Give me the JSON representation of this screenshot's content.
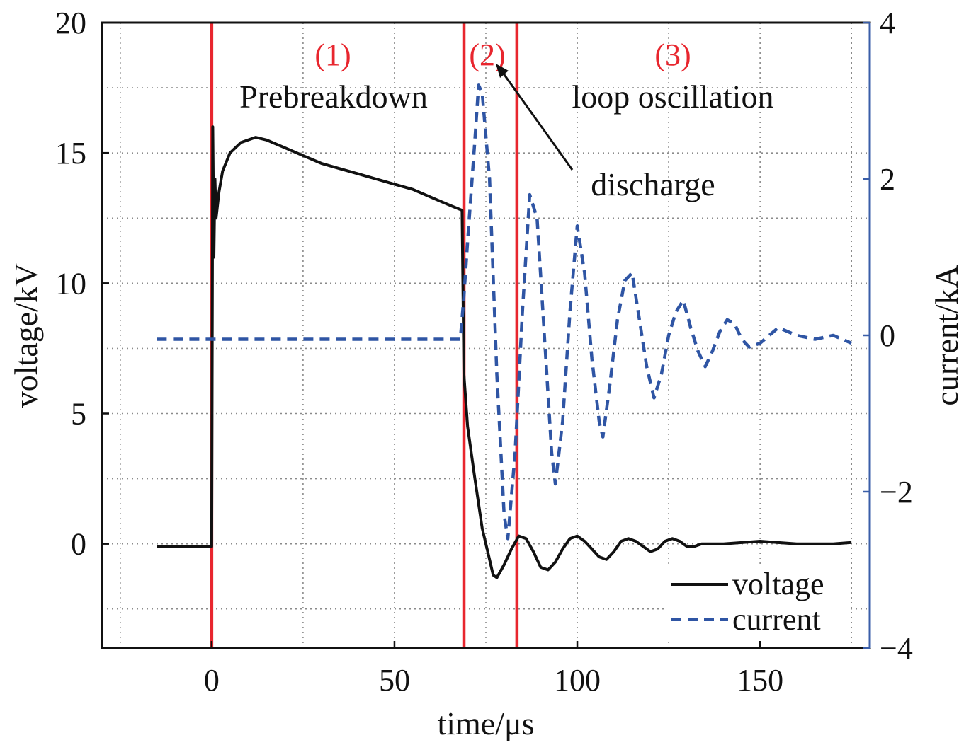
{
  "chart_data": {
    "type": "line",
    "x_label": "time/μs",
    "y_label_left": "voltage/kV",
    "y_label_right": "current/kA",
    "x_range": [
      -30,
      180
    ],
    "y_range_left": [
      -4,
      20
    ],
    "y_range_right": [
      -4,
      4
    ],
    "x_ticks": [
      0,
      50,
      100,
      150
    ],
    "x_tick_labels": [
      "0",
      "50",
      "100",
      "150"
    ],
    "y_ticks_left": [
      0,
      5,
      10,
      15,
      20
    ],
    "y_tick_labels_left": [
      "0",
      "5",
      "10",
      "15",
      "20"
    ],
    "y_ticks_right": [
      -4,
      -2,
      0,
      2,
      4
    ],
    "y_tick_labels_right": [
      "−4",
      "−2",
      "0",
      "2",
      "4"
    ],
    "grid": "dotted",
    "legend_position": "bottom-right",
    "colors": {
      "voltage": "#111111",
      "current": "#2f55a4",
      "region_lines": "#e8262e",
      "right_axis": "#3a5ea8"
    },
    "series": [
      {
        "name": "voltage",
        "axis": "left",
        "style": "solid",
        "x": [
          -15,
          0,
          0.3,
          0.6,
          0.9,
          1.2,
          2,
          3,
          5,
          8,
          12,
          15,
          20,
          25,
          30,
          35,
          40,
          45,
          50,
          55,
          60,
          65,
          68.5,
          69,
          70,
          72,
          74,
          76,
          77,
          78,
          80,
          82,
          84,
          86,
          88,
          90,
          92,
          94,
          96,
          98,
          100,
          102,
          104,
          106,
          108,
          110,
          112,
          114,
          116,
          118,
          120,
          122,
          124,
          126,
          128,
          130,
          132,
          134,
          140,
          150,
          160,
          170,
          175
        ],
        "y": [
          -0.1,
          -0.1,
          16,
          11,
          14,
          12.5,
          13.5,
          14.3,
          15,
          15.4,
          15.6,
          15.5,
          15.2,
          14.9,
          14.6,
          14.4,
          14.2,
          14,
          13.8,
          13.6,
          13.3,
          13,
          12.8,
          6.5,
          4.5,
          2.5,
          0.6,
          -0.6,
          -1.2,
          -1.3,
          -0.8,
          -0.2,
          0.3,
          0.2,
          -0.3,
          -0.9,
          -1,
          -0.7,
          -0.2,
          0.2,
          0.3,
          0.1,
          -0.2,
          -0.5,
          -0.6,
          -0.3,
          0.1,
          0.2,
          0.1,
          -0.1,
          -0.3,
          -0.2,
          0.1,
          0.2,
          0.1,
          -0.1,
          -0.1,
          0,
          0,
          0.1,
          0,
          0,
          0.05
        ]
      },
      {
        "name": "current",
        "axis": "right",
        "style": "dashed",
        "x": [
          -15,
          0,
          20,
          40,
          68,
          69,
          70,
          72,
          73,
          74,
          76,
          78,
          80,
          81,
          83,
          85,
          87,
          89,
          91,
          93,
          94,
          96,
          98,
          100,
          102,
          104,
          106,
          107,
          109,
          111,
          113,
          115,
          117,
          119,
          121,
          123,
          125,
          127,
          129,
          131,
          133,
          135,
          137,
          139,
          141,
          143,
          145,
          147,
          150,
          155,
          160,
          165,
          170,
          175
        ],
        "y": [
          -0.05,
          -0.05,
          -0.05,
          -0.05,
          -0.05,
          0.5,
          1.2,
          2.5,
          3.2,
          3.1,
          2.0,
          -0.5,
          -2.3,
          -2.6,
          -1.5,
          0.3,
          1.8,
          1.5,
          0,
          -1.5,
          -1.9,
          -1.1,
          0.3,
          1.4,
          0.8,
          -0.3,
          -1.1,
          -1.3,
          -0.6,
          0.2,
          0.7,
          0.8,
          0.2,
          -0.4,
          -0.8,
          -0.5,
          0,
          0.3,
          0.45,
          0.1,
          -0.2,
          -0.4,
          -0.2,
          0.05,
          0.2,
          0.15,
          -0.05,
          -0.15,
          -0.1,
          0.1,
          0.0,
          -0.05,
          0.0,
          -0.1
        ]
      }
    ],
    "region_lines_x": [
      0,
      69,
      83.5
    ],
    "region_labels": [
      "(1)",
      "(2)",
      "(3)"
    ],
    "annotations": {
      "prebreakdown": "Prebreakdown",
      "loop": "loop oscillation",
      "discharge": "discharge"
    }
  }
}
